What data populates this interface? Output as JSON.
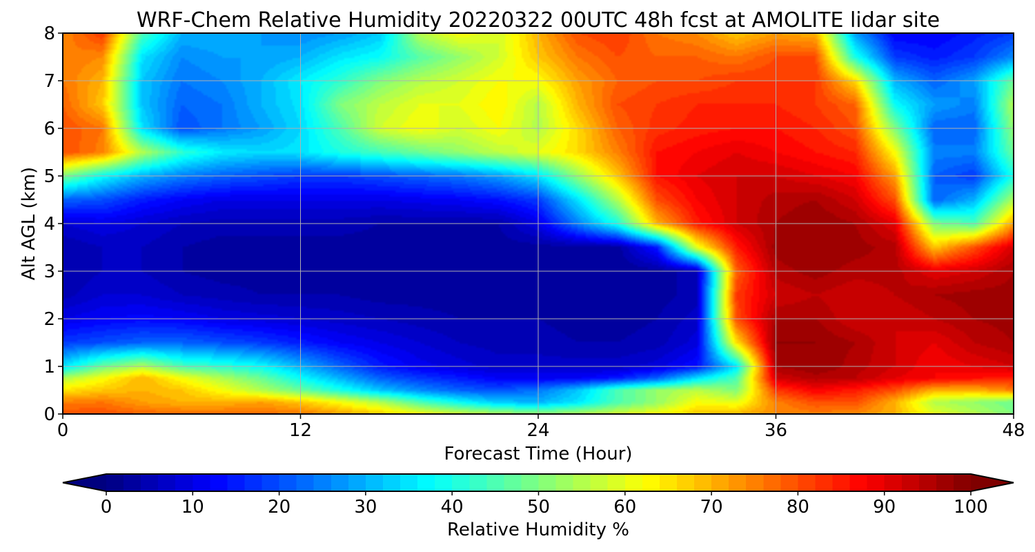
{
  "chart_data": {
    "type": "heatmap",
    "title": "WRF-Chem Relative Humidity 20220322 00UTC 48h fcst at AMOLITE lidar site",
    "xlabel": "Forecast Time (Hour)",
    "ylabel": "Alt AGL (km)",
    "xlim": [
      0,
      48
    ],
    "ylim": [
      0,
      8
    ],
    "x_ticks": [
      "0",
      "12",
      "24",
      "36",
      "48"
    ],
    "y_ticks": [
      "0",
      "1",
      "2",
      "3",
      "4",
      "5",
      "6",
      "7",
      "8"
    ],
    "grid": true,
    "colormap": "jet",
    "colorbar": {
      "label": "Relative Humidity %",
      "orientation": "horizontal",
      "extend": "both",
      "range": [
        0,
        100
      ],
      "ticks": [
        "0",
        "10",
        "20",
        "30",
        "40",
        "50",
        "60",
        "70",
        "80",
        "90",
        "100"
      ]
    },
    "x": [
      0,
      2,
      4,
      6,
      8,
      10,
      12,
      14,
      16,
      18,
      20,
      22,
      24,
      26,
      28,
      30,
      32,
      34,
      36,
      38,
      40,
      42,
      44,
      46,
      48
    ],
    "y": [
      0,
      0.25,
      0.5,
      0.75,
      1,
      1.5,
      2,
      2.5,
      3,
      3.5,
      4,
      4.5,
      5,
      5.5,
      6,
      6.5,
      7,
      7.5,
      8
    ],
    "z": [
      [
        80,
        80,
        78,
        77,
        77,
        77,
        76,
        72,
        68,
        62,
        58,
        55,
        52,
        55,
        58,
        62,
        68,
        70,
        74,
        75,
        74,
        70,
        60,
        55,
        50
      ],
      [
        75,
        76,
        72,
        70,
        70,
        72,
        68,
        62,
        55,
        45,
        38,
        32,
        30,
        35,
        45,
        52,
        62,
        60,
        75,
        80,
        80,
        70,
        55,
        52,
        48
      ],
      [
        65,
        68,
        70,
        68,
        62,
        55,
        48,
        40,
        32,
        26,
        22,
        20,
        24,
        32,
        45,
        52,
        56,
        50,
        82,
        88,
        85,
        80,
        70,
        70,
        75
      ],
      [
        55,
        62,
        70,
        62,
        55,
        48,
        38,
        30,
        22,
        18,
        15,
        12,
        12,
        12,
        15,
        22,
        35,
        45,
        92,
        95,
        94,
        90,
        88,
        86,
        85
      ],
      [
        35,
        48,
        55,
        45,
        42,
        38,
        30,
        22,
        15,
        11,
        9,
        7,
        7,
        7,
        7,
        9,
        14,
        35,
        96,
        98,
        95,
        92,
        88,
        90,
        92
      ],
      [
        18,
        20,
        22,
        22,
        20,
        18,
        15,
        12,
        10,
        8,
        6,
        5,
        5,
        4,
        4,
        5,
        9,
        65,
        98,
        98,
        96,
        92,
        90,
        94,
        96
      ],
      [
        10,
        12,
        13,
        12,
        10,
        9,
        8,
        7,
        6,
        5,
        4,
        4,
        4,
        3,
        3,
        4,
        7,
        80,
        96,
        96,
        92,
        92,
        94,
        96,
        97
      ],
      [
        5,
        8,
        8,
        6,
        5,
        4,
        4,
        4,
        3,
        3,
        3,
        3,
        3,
        2,
        2,
        3,
        5,
        82,
        92,
        94,
        92,
        94,
        96,
        97,
        97
      ],
      [
        4,
        6,
        6,
        4,
        3,
        3,
        3,
        3,
        3,
        3,
        3,
        3,
        3,
        3,
        2,
        3,
        5,
        78,
        95,
        97,
        95,
        95,
        90,
        92,
        96
      ],
      [
        4,
        6,
        6,
        4,
        3,
        3,
        3,
        3,
        3,
        3,
        3,
        3,
        3,
        3,
        3,
        15,
        60,
        85,
        97,
        98,
        97,
        95,
        68,
        80,
        92
      ],
      [
        8,
        10,
        8,
        6,
        5,
        5,
        5,
        5,
        4,
        4,
        4,
        4,
        10,
        25,
        40,
        70,
        85,
        92,
        96,
        98,
        96,
        90,
        50,
        45,
        72
      ],
      [
        22,
        20,
        15,
        12,
        10,
        10,
        10,
        10,
        10,
        11,
        12,
        14,
        18,
        35,
        55,
        80,
        88,
        92,
        95,
        96,
        92,
        80,
        22,
        30,
        55
      ],
      [
        50,
        38,
        30,
        25,
        22,
        20,
        18,
        18,
        20,
        22,
        24,
        28,
        35,
        52,
        68,
        86,
        90,
        92,
        92,
        90,
        88,
        72,
        22,
        18,
        40
      ],
      [
        80,
        75,
        55,
        42,
        36,
        34,
        35,
        40,
        44,
        48,
        52,
        56,
        60,
        66,
        75,
        86,
        88,
        90,
        88,
        86,
        84,
        62,
        25,
        25,
        48
      ],
      [
        80,
        76,
        35,
        20,
        24,
        28,
        34,
        45,
        58,
        62,
        58,
        62,
        55,
        66,
        78,
        83,
        85,
        86,
        86,
        84,
        80,
        50,
        22,
        22,
        52
      ],
      [
        78,
        68,
        32,
        22,
        24,
        30,
        35,
        50,
        56,
        60,
        60,
        64,
        55,
        70,
        80,
        82,
        84,
        84,
        84,
        82,
        78,
        38,
        28,
        25,
        55
      ],
      [
        76,
        70,
        32,
        24,
        26,
        30,
        36,
        42,
        50,
        55,
        58,
        62,
        62,
        72,
        78,
        80,
        80,
        82,
        82,
        82,
        66,
        30,
        22,
        28,
        48
      ],
      [
        76,
        74,
        35,
        26,
        28,
        28,
        30,
        35,
        38,
        46,
        52,
        58,
        68,
        76,
        80,
        78,
        78,
        76,
        80,
        80,
        40,
        18,
        15,
        18,
        26
      ],
      [
        74,
        82,
        45,
        30,
        30,
        28,
        26,
        28,
        32,
        55,
        62,
        58,
        70,
        80,
        82,
        76,
        74,
        68,
        72,
        70,
        28,
        12,
        12,
        15,
        18
      ]
    ]
  }
}
